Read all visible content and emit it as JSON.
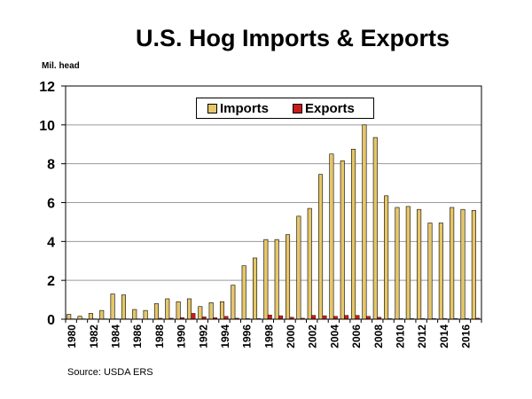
{
  "title": "U.S. Hog Imports & Exports",
  "unit_label": "Mil. head",
  "source": "Source:  USDA ERS",
  "colors": {
    "imports": "#e6c66a",
    "exports": "#cc1a1a",
    "grid": "#9a9a9a"
  },
  "chart_data": {
    "type": "bar",
    "title": "U.S. Hog Imports & Exports",
    "ylabel": "Mil. head",
    "ylim": [
      0,
      12
    ],
    "yticks": [
      "0",
      "2",
      "4",
      "6",
      "8",
      "10",
      "12"
    ],
    "grid": true,
    "legend_position": "top-center",
    "categories": [
      "1980",
      "1981",
      "1982",
      "1983",
      "1984",
      "1985",
      "1986",
      "1987",
      "1988",
      "1989",
      "1990",
      "1991",
      "1992",
      "1993",
      "1994",
      "1995",
      "1996",
      "1997",
      "1998",
      "1999",
      "2000",
      "2001",
      "2002",
      "2003",
      "2004",
      "2005",
      "2006",
      "2007",
      "2008",
      "2009",
      "2010",
      "2011",
      "2012",
      "2013",
      "2014",
      "2015",
      "2016",
      "2017"
    ],
    "xtick_labels": [
      "1980",
      "1982",
      "1984",
      "1986",
      "1988",
      "1990",
      "1992",
      "1994",
      "1996",
      "1998",
      "2000",
      "2002",
      "2004",
      "2006",
      "2008",
      "2010",
      "2012",
      "2014",
      "2016"
    ],
    "series": [
      {
        "name": "Imports",
        "values": [
          0.25,
          0.15,
          0.3,
          0.45,
          1.3,
          1.25,
          0.5,
          0.45,
          0.8,
          1.05,
          0.9,
          1.05,
          0.65,
          0.85,
          0.9,
          1.75,
          2.75,
          3.15,
          4.1,
          4.1,
          4.35,
          5.3,
          5.7,
          7.45,
          8.5,
          8.15,
          8.75,
          10.0,
          9.35,
          6.35,
          5.75,
          5.8,
          5.65,
          4.95,
          4.95,
          5.75,
          5.65,
          5.6
        ]
      },
      {
        "name": "Exports",
        "values": [
          0.02,
          0.02,
          0.02,
          0.02,
          0.02,
          0.02,
          0.02,
          0.02,
          0.05,
          0.05,
          0.08,
          0.3,
          0.12,
          0.08,
          0.15,
          0.05,
          0.03,
          0.03,
          0.22,
          0.18,
          0.1,
          0.05,
          0.2,
          0.18,
          0.15,
          0.2,
          0.2,
          0.15,
          0.1,
          0.03,
          0.03,
          0.03,
          0.03,
          0.03,
          0.03,
          0.03,
          0.03,
          0.05
        ]
      }
    ]
  }
}
